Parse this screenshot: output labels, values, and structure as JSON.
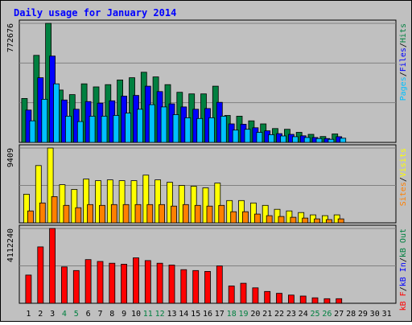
{
  "colors": {
    "frame_bg": "#c0c0c0",
    "panel_bg": "#c0c0c0",
    "title": "#0000ff",
    "grid": "#808080",
    "hits": "#008040",
    "files": "#0000ff",
    "pages": "#00c0ff",
    "visits": "#ffff00",
    "sites": "#ff8000",
    "kb_f": "#ff0000",
    "kb_in": "#0000ff",
    "kb_out": "#008040",
    "weekend": "#008040",
    "weekday": "#000000"
  },
  "chart_data": {
    "type": "bar",
    "title": "Daily usage for January 2014",
    "days": [
      "1",
      "2",
      "3",
      "4",
      "5",
      "6",
      "7",
      "8",
      "9",
      "10",
      "11",
      "12",
      "13",
      "14",
      "15",
      "16",
      "17",
      "18",
      "19",
      "20",
      "21",
      "22",
      "23",
      "24",
      "25",
      "26",
      "27",
      "28",
      "29",
      "30",
      "31"
    ],
    "weekend_days": [
      "4",
      "5",
      "11",
      "12",
      "18",
      "19",
      "25",
      "26"
    ],
    "panels": [
      {
        "id": "hits-files-pages",
        "max_label": "772676",
        "ymax": 772676,
        "series": [
          {
            "name": "Hits",
            "color_key": "hits",
            "values": [
              285000,
              565000,
              772676,
              340000,
              310000,
              380000,
              360000,
              375000,
              405000,
              420000,
              455000,
              425000,
              375000,
              325000,
              315000,
              315000,
              365000,
              175000,
              170000,
              140000,
              120000,
              90000,
              85000,
              65000,
              52000,
              38000,
              55000,
              0,
              0,
              0,
              0
            ]
          },
          {
            "name": "Files",
            "color_key": "files",
            "values": [
              210000,
              420000,
              560000,
              275000,
              215000,
              265000,
              255000,
              270000,
              300000,
              305000,
              365000,
              330000,
              250000,
              230000,
              215000,
              220000,
              260000,
              120000,
              118000,
              95000,
              75000,
              57000,
              52000,
              43000,
              32000,
              25000,
              37000,
              0,
              0,
              0,
              0
            ]
          },
          {
            "name": "Pages",
            "color_key": "pages",
            "values": [
              140000,
              280000,
              380000,
              170000,
              135000,
              170000,
              170000,
              175000,
              190000,
              215000,
              245000,
              230000,
              180000,
              160000,
              155000,
              160000,
              170000,
              80000,
              85000,
              65000,
              50000,
              42000,
              37000,
              32000,
              25000,
              20000,
              27000,
              0,
              0,
              0,
              0
            ]
          }
        ],
        "axis_legend": [
          {
            "text": "Pages",
            "color_key": "pages"
          },
          {
            "text": "/",
            "color_key": "weekday"
          },
          {
            "text": "Files",
            "color_key": "files"
          },
          {
            "text": "/",
            "color_key": "weekday"
          },
          {
            "text": "Hits",
            "color_key": "hits"
          }
        ]
      },
      {
        "id": "visits-sites",
        "max_label": "9409",
        "ymax": 9409,
        "series": [
          {
            "name": "Visits",
            "color_key": "visits",
            "values": [
              3600,
              7200,
              9409,
              4800,
              4200,
              5500,
              5300,
              5400,
              5300,
              5300,
              6000,
              5400,
              5100,
              4700,
              4600,
              4400,
              5000,
              2800,
              2800,
              2500,
              2200,
              1700,
              1500,
              1300,
              1000,
              900,
              1000,
              0,
              0,
              0,
              0
            ]
          },
          {
            "name": "Sites",
            "color_key": "sites",
            "values": [
              1500,
              2500,
              3300,
              2200,
              1900,
              2300,
              2200,
              2300,
              2300,
              2300,
              2300,
              2300,
              2100,
              2300,
              2200,
              2100,
              2200,
              1400,
              1400,
              1100,
              900,
              800,
              700,
              600,
              500,
              400,
              500,
              0,
              0,
              0,
              0
            ]
          }
        ],
        "axis_legend": [
          {
            "text": "Sites",
            "color_key": "sites"
          },
          {
            "text": "/",
            "color_key": "weekday"
          },
          {
            "text": "Visits",
            "color_key": "visits"
          }
        ]
      },
      {
        "id": "kbytes",
        "max_label": "4112240",
        "ymax": 4112240,
        "series": [
          {
            "name": "kB F",
            "color_key": "kb_f",
            "values": [
              1550000,
              3100000,
              4112240,
              2000000,
              1800000,
              2400000,
              2300000,
              2200000,
              2150000,
              2500000,
              2350000,
              2200000,
              2100000,
              1850000,
              1800000,
              1750000,
              2050000,
              950000,
              1100000,
              850000,
              650000,
              550000,
              450000,
              400000,
              300000,
              250000,
              250000,
              0,
              0,
              0,
              0
            ]
          }
        ],
        "axis_legend": [
          {
            "text": "kB F",
            "color_key": "kb_f"
          },
          {
            "text": "/",
            "color_key": "weekday"
          },
          {
            "text": "kB In",
            "color_key": "kb_in"
          },
          {
            "text": "/",
            "color_key": "weekday"
          },
          {
            "text": "kB Out",
            "color_key": "kb_out"
          }
        ]
      }
    ]
  }
}
